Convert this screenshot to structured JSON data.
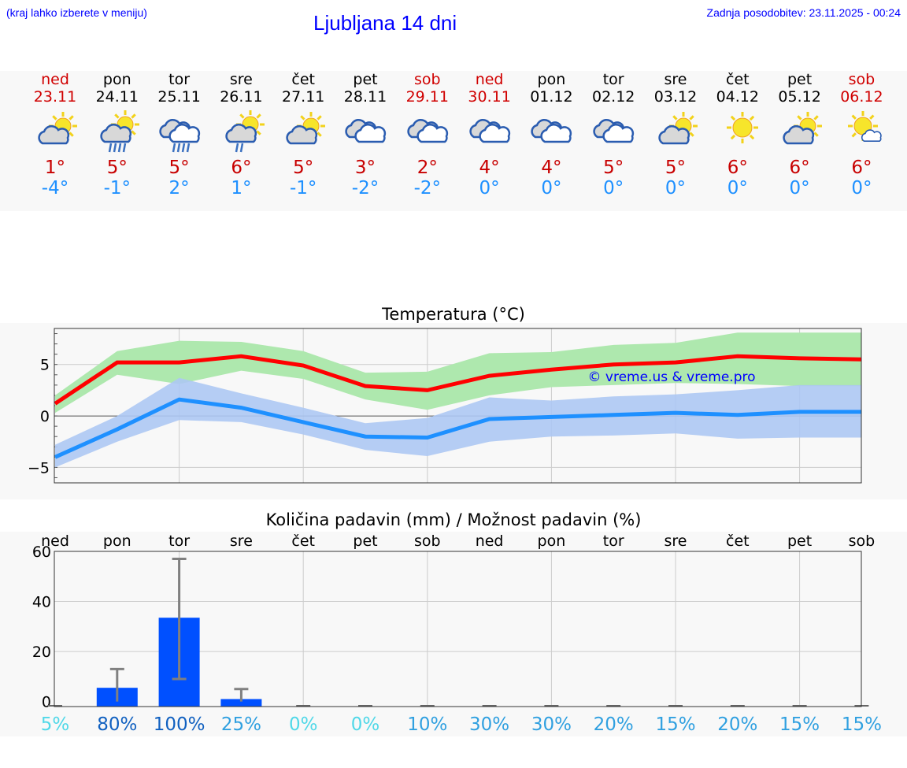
{
  "header": {
    "hint": "(kraj lahko izberete v meniju)",
    "title": "Ljubljana 14 dni",
    "updated": "Zadnja posodobitev: 23.11.2025 - 00:24"
  },
  "days": [
    {
      "name": "ned",
      "date": "23.11",
      "weekend": true,
      "icon": "partly-cloudy",
      "max": "1°",
      "min": "-4°"
    },
    {
      "name": "pon",
      "date": "24.11",
      "weekend": false,
      "icon": "sun-cloud-rain",
      "max": "5°",
      "min": "-1°"
    },
    {
      "name": "tor",
      "date": "25.11",
      "weekend": false,
      "icon": "cloudy-rain",
      "max": "5°",
      "min": "2°"
    },
    {
      "name": "sre",
      "date": "26.11",
      "weekend": false,
      "icon": "sun-cloud-light-rain",
      "max": "6°",
      "min": "1°"
    },
    {
      "name": "čet",
      "date": "27.11",
      "weekend": false,
      "icon": "partly-cloudy",
      "max": "5°",
      "min": "-1°"
    },
    {
      "name": "pet",
      "date": "28.11",
      "weekend": false,
      "icon": "cloudy",
      "max": "3°",
      "min": "-2°"
    },
    {
      "name": "sob",
      "date": "29.11",
      "weekend": true,
      "icon": "cloudy",
      "max": "2°",
      "min": "-2°"
    },
    {
      "name": "ned",
      "date": "30.11",
      "weekend": true,
      "icon": "cloudy",
      "max": "4°",
      "min": "0°"
    },
    {
      "name": "pon",
      "date": "01.12",
      "weekend": false,
      "icon": "cloudy",
      "max": "4°",
      "min": "0°"
    },
    {
      "name": "tor",
      "date": "02.12",
      "weekend": false,
      "icon": "cloudy",
      "max": "5°",
      "min": "0°"
    },
    {
      "name": "sre",
      "date": "03.12",
      "weekend": false,
      "icon": "partly-cloudy",
      "max": "5°",
      "min": "0°"
    },
    {
      "name": "čet",
      "date": "04.12",
      "weekend": false,
      "icon": "sunny",
      "max": "6°",
      "min": "0°"
    },
    {
      "name": "pet",
      "date": "05.12",
      "weekend": false,
      "icon": "partly-cloudy",
      "max": "6°",
      "min": "0°"
    },
    {
      "name": "sob",
      "date": "06.12",
      "weekend": true,
      "icon": "sun-small-cloud",
      "max": "6°",
      "min": "0°"
    }
  ],
  "colors": {
    "max": "#ff0000",
    "min": "#1e90ff",
    "max_band": "#aee8ae",
    "min_band": "#adc8f3",
    "bar": "#0050ff",
    "errorbar": "#808080",
    "weekend": "#d00000"
  },
  "chart_data": [
    {
      "type": "line",
      "title": "Temperatura (°C)",
      "ylim": [
        -6.5,
        8.5
      ],
      "yticks": [
        -5,
        0,
        5
      ],
      "ytick_labels": [
        "−5",
        "0",
        "5"
      ],
      "grid": true,
      "x": [
        "23.11",
        "24.11",
        "25.11",
        "26.11",
        "27.11",
        "28.11",
        "29.11",
        "30.11",
        "01.12",
        "02.12",
        "03.12",
        "04.12",
        "05.12",
        "06.12"
      ],
      "annotation": "© vreme.us & vreme.pro",
      "series": [
        {
          "values": [
            1.2,
            5.2,
            5.2,
            5.8,
            4.9,
            2.9,
            2.5,
            3.9,
            4.5,
            5.0,
            5.2,
            5.8,
            5.6,
            5.5
          ],
          "band_low": [
            0.3,
            4.0,
            3.1,
            4.4,
            3.6,
            1.6,
            0.6,
            2.0,
            2.8,
            3.0,
            3.2,
            3.1,
            2.9,
            2.9
          ],
          "band_high": [
            2.0,
            6.3,
            7.3,
            7.2,
            6.3,
            4.2,
            4.3,
            6.1,
            6.2,
            6.9,
            7.1,
            8.1,
            8.1,
            8.1
          ]
        },
        {
          "values": [
            -4.0,
            -1.3,
            1.6,
            0.8,
            -0.6,
            -2.0,
            -2.1,
            -0.3,
            -0.1,
            0.1,
            0.3,
            0.1,
            0.4,
            0.4
          ],
          "band_low": [
            -5.0,
            -2.5,
            -0.4,
            -0.6,
            -1.8,
            -3.3,
            -3.9,
            -2.5,
            -2.0,
            -1.9,
            -1.7,
            -2.2,
            -2.1,
            -2.1
          ],
          "band_high": [
            -2.8,
            0.0,
            3.7,
            2.2,
            0.8,
            -0.7,
            -0.2,
            1.8,
            1.5,
            1.9,
            2.1,
            2.5,
            3.0,
            3.0
          ]
        }
      ]
    },
    {
      "type": "bar",
      "title": "Količina padavin (mm) / Možnost padavin (%)",
      "ylim": [
        -2,
        60
      ],
      "yticks": [
        0,
        20,
        40,
        60
      ],
      "grid": true,
      "categories": [
        "ned",
        "pon",
        "tor",
        "sre",
        "čet",
        "pet",
        "sob",
        "ned",
        "pon",
        "tor",
        "sre",
        "čet",
        "pet",
        "sob"
      ],
      "values": [
        0,
        5.5,
        33.5,
        1,
        0,
        0,
        0,
        0,
        0,
        0,
        0,
        0,
        0,
        0
      ],
      "error_low": [
        0,
        0,
        9,
        0,
        0,
        0,
        0,
        0,
        0,
        0,
        0,
        0,
        0,
        0
      ],
      "error_high": [
        0,
        13,
        57,
        5,
        0,
        0,
        0,
        0,
        0,
        0,
        0,
        0,
        0,
        0
      ],
      "chance": [
        "5%",
        "80%",
        "100%",
        "25%",
        "0%",
        "0%",
        "10%",
        "30%",
        "30%",
        "20%",
        "15%",
        "20%",
        "15%",
        "15%"
      ],
      "chance_values": [
        5,
        80,
        100,
        25,
        0,
        0,
        10,
        30,
        30,
        20,
        15,
        20,
        15,
        15
      ]
    }
  ]
}
